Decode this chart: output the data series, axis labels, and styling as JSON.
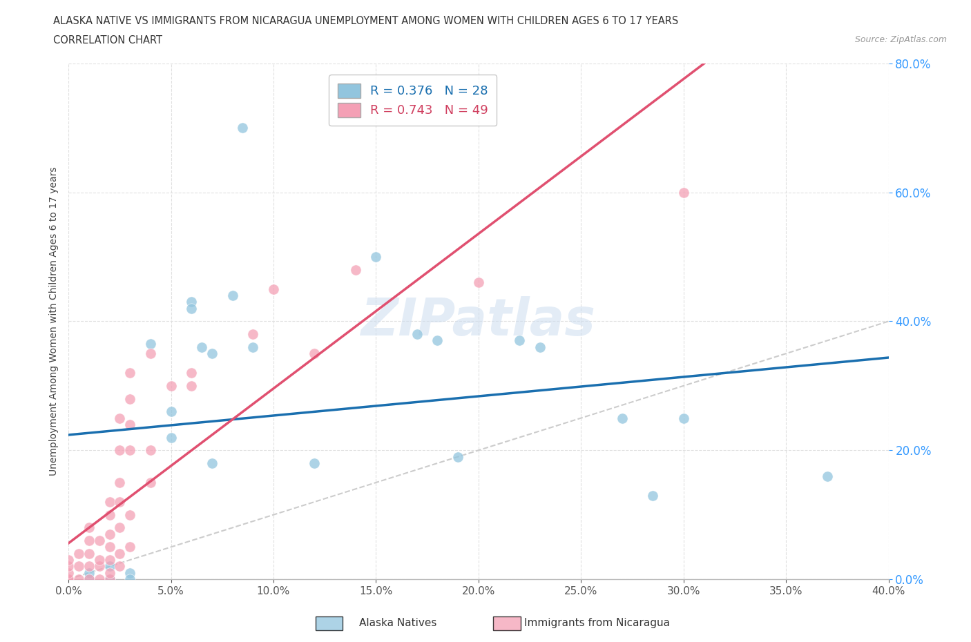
{
  "title_line1": "ALASKA NATIVE VS IMMIGRANTS FROM NICARAGUA UNEMPLOYMENT AMONG WOMEN WITH CHILDREN AGES 6 TO 17 YEARS",
  "title_line2": "CORRELATION CHART",
  "source": "Source: ZipAtlas.com",
  "xlim": [
    0.0,
    0.4
  ],
  "ylim": [
    0.0,
    0.8
  ],
  "legend_r1": "R = 0.376   N = 28",
  "legend_r2": "R = 0.743   N = 49",
  "color_alaska": "#92c5de",
  "color_nicaragua": "#f4a0b5",
  "trendline_alaska_color": "#1a6faf",
  "trendline_nicaragua_color": "#e05070",
  "trendline_ref_color": "#cccccc",
  "watermark": "ZIPatlas",
  "alaska_trendline": [
    0.15,
    0.455
  ],
  "nicaragua_trendline": [
    -0.02,
    0.46
  ],
  "alaska_points": [
    [
      0.01,
      0.0
    ],
    [
      0.01,
      0.01
    ],
    [
      0.02,
      0.0
    ],
    [
      0.02,
      0.02
    ],
    [
      0.03,
      0.01
    ],
    [
      0.03,
      0.0
    ],
    [
      0.04,
      0.365
    ],
    [
      0.05,
      0.26
    ],
    [
      0.05,
      0.22
    ],
    [
      0.06,
      0.43
    ],
    [
      0.06,
      0.42
    ],
    [
      0.065,
      0.36
    ],
    [
      0.07,
      0.35
    ],
    [
      0.07,
      0.18
    ],
    [
      0.08,
      0.44
    ],
    [
      0.085,
      0.7
    ],
    [
      0.09,
      0.36
    ],
    [
      0.12,
      0.18
    ],
    [
      0.15,
      0.5
    ],
    [
      0.17,
      0.38
    ],
    [
      0.18,
      0.37
    ],
    [
      0.19,
      0.19
    ],
    [
      0.22,
      0.37
    ],
    [
      0.23,
      0.36
    ],
    [
      0.27,
      0.25
    ],
    [
      0.285,
      0.13
    ],
    [
      0.3,
      0.25
    ],
    [
      0.37,
      0.16
    ]
  ],
  "nicaragua_points": [
    [
      0.0,
      0.0
    ],
    [
      0.0,
      0.0
    ],
    [
      0.0,
      0.01
    ],
    [
      0.0,
      0.02
    ],
    [
      0.0,
      0.03
    ],
    [
      0.005,
      0.0
    ],
    [
      0.005,
      0.02
    ],
    [
      0.005,
      0.04
    ],
    [
      0.01,
      0.0
    ],
    [
      0.01,
      0.02
    ],
    [
      0.01,
      0.04
    ],
    [
      0.01,
      0.06
    ],
    [
      0.01,
      0.08
    ],
    [
      0.015,
      0.0
    ],
    [
      0.015,
      0.02
    ],
    [
      0.015,
      0.03
    ],
    [
      0.015,
      0.06
    ],
    [
      0.02,
      0.0
    ],
    [
      0.02,
      0.01
    ],
    [
      0.02,
      0.03
    ],
    [
      0.02,
      0.05
    ],
    [
      0.02,
      0.07
    ],
    [
      0.02,
      0.1
    ],
    [
      0.02,
      0.12
    ],
    [
      0.025,
      0.02
    ],
    [
      0.025,
      0.04
    ],
    [
      0.025,
      0.08
    ],
    [
      0.025,
      0.12
    ],
    [
      0.025,
      0.15
    ],
    [
      0.025,
      0.2
    ],
    [
      0.025,
      0.25
    ],
    [
      0.03,
      0.05
    ],
    [
      0.03,
      0.1
    ],
    [
      0.03,
      0.2
    ],
    [
      0.03,
      0.24
    ],
    [
      0.03,
      0.28
    ],
    [
      0.03,
      0.32
    ],
    [
      0.04,
      0.15
    ],
    [
      0.04,
      0.2
    ],
    [
      0.04,
      0.35
    ],
    [
      0.05,
      0.3
    ],
    [
      0.06,
      0.3
    ],
    [
      0.06,
      0.32
    ],
    [
      0.09,
      0.38
    ],
    [
      0.1,
      0.45
    ],
    [
      0.12,
      0.35
    ],
    [
      0.14,
      0.48
    ],
    [
      0.2,
      0.46
    ],
    [
      0.3,
      0.6
    ]
  ]
}
